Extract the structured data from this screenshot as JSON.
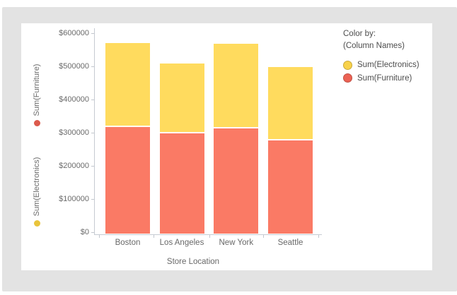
{
  "canvas": {
    "background": "#e3e3e3",
    "panel_background": "#ffffff",
    "axis_line_color": "#c6cbd2"
  },
  "chart_data": {
    "type": "bar",
    "stacked": true,
    "categories": [
      "Boston",
      "Los Angeles",
      "New York",
      "Seattle"
    ],
    "series": [
      {
        "name": "Sum(Furniture)",
        "color": "#fa7a65",
        "values": [
          321000,
          302000,
          317000,
          280000
        ]
      },
      {
        "name": "Sum(Electronics)",
        "color": "#ffdb5e",
        "values": [
          254000,
          210000,
          255000,
          222000
        ]
      }
    ],
    "xlabel": "Store Location",
    "ylabel_left_top": "Sum(Furniture)",
    "ylabel_left_bottom": "Sum(Electronics)",
    "ylim": [
      0,
      600000
    ],
    "y_tick_labels": [
      "$0",
      "$100000",
      "$200000",
      "$300000",
      "$400000",
      "$500000",
      "$600000"
    ],
    "grid": false,
    "legend_position": "right"
  },
  "y_axis_measures": [
    {
      "label": "Sum(Furniture)",
      "dot_color": "#dc5a4c"
    },
    {
      "label": "Sum(Electronics)",
      "dot_color": "#e9c43b"
    }
  ],
  "legend": {
    "title": "Color by:",
    "subtitle": "(Column Names)",
    "items": [
      {
        "label": "Sum(Electronics)",
        "fill": "#f8d24b",
        "border": "#c9a93b"
      },
      {
        "label": "Sum(Furniture)",
        "fill": "#ec6254",
        "border": "#bf5044"
      }
    ]
  }
}
